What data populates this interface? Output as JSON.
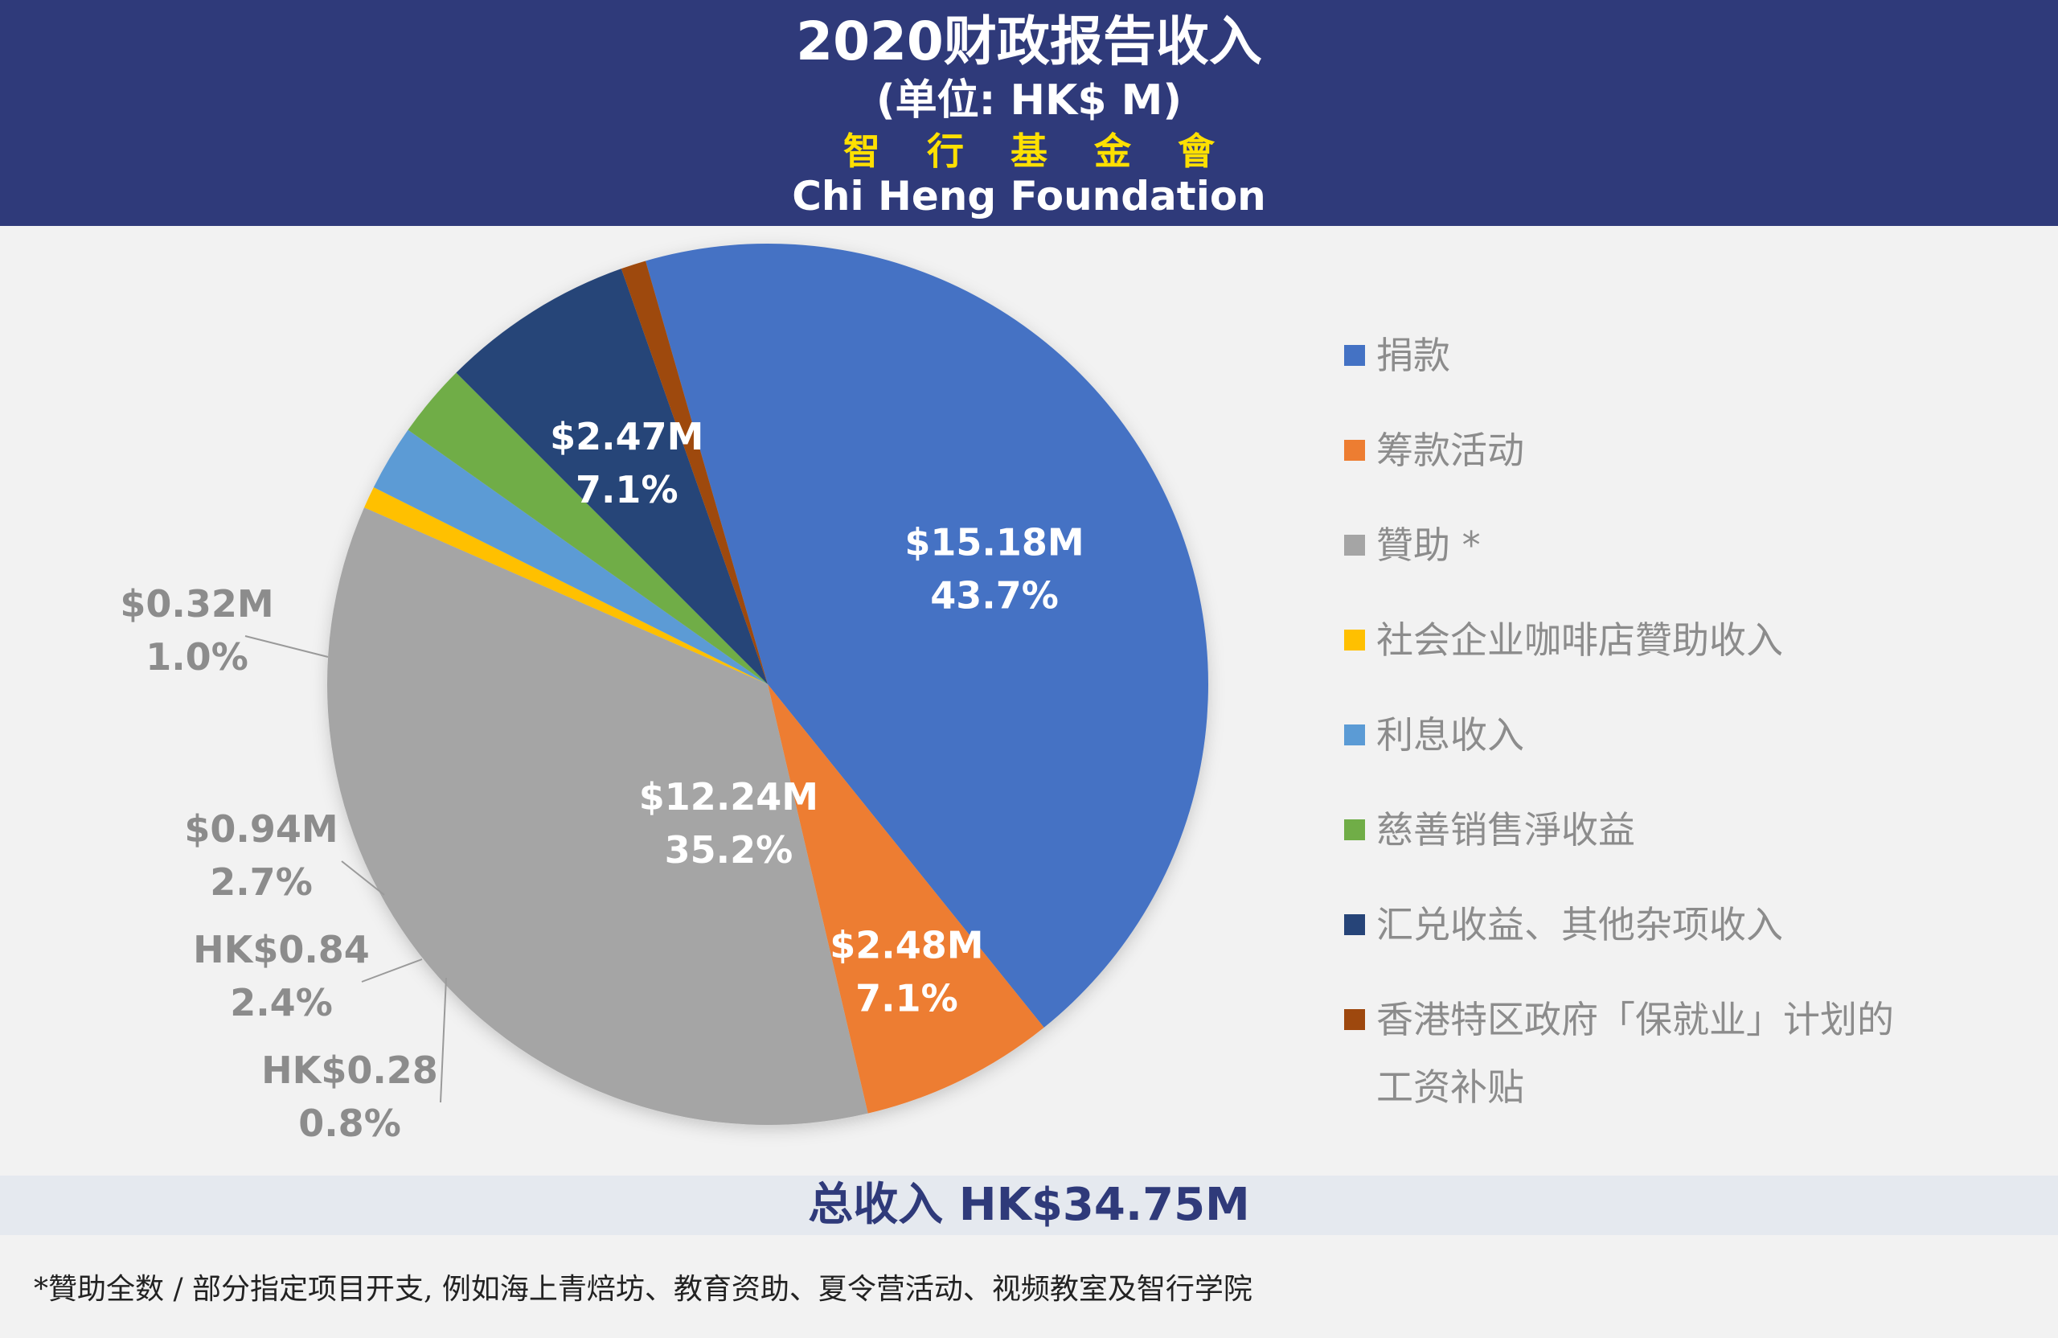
{
  "header": {
    "title": "2020财政报告收入",
    "subtitle": "(单位: HK$ M)",
    "org_cn": "智行基金會",
    "org_en": "Chi Heng Foundation"
  },
  "chart_data": {
    "type": "pie",
    "title": "2020财政报告收入",
    "subtitle": "(单位: HK$ M)",
    "legend_position": "right",
    "slices": [
      {
        "name": "捐款",
        "value": 15.18,
        "percent": 43.7,
        "value_label": "$15.18M",
        "percent_label": "43.7%",
        "color": "#4472c4"
      },
      {
        "name": "筹款活动",
        "value": 2.48,
        "percent": 7.1,
        "value_label": "$2.48M",
        "percent_label": "7.1%",
        "color": "#ed7d31"
      },
      {
        "name": "贊助 *",
        "value": 12.24,
        "percent": 35.2,
        "value_label": "$12.24M",
        "percent_label": "35.2%",
        "color": "#a5a5a5"
      },
      {
        "name": "社会企业咖啡店贊助收入",
        "value": 0.28,
        "percent": 0.8,
        "value_label": "HK$0.28",
        "percent_label": "0.8%",
        "color": "#ffc000"
      },
      {
        "name": "利息收入",
        "value": 0.84,
        "percent": 2.4,
        "value_label": "HK$0.84",
        "percent_label": "2.4%",
        "color": "#5b9bd5"
      },
      {
        "name": "慈善销售淨收益",
        "value": 0.94,
        "percent": 2.7,
        "value_label": "$0.94M",
        "percent_label": "2.7%",
        "color": "#70ad47"
      },
      {
        "name": "汇兑收益、其他杂项收入",
        "value": 2.47,
        "percent": 7.1,
        "value_label": "$2.47M",
        "percent_label": "7.1%",
        "color": "#264478"
      },
      {
        "name": "香港特区政府「保就业」计划的工资补贴",
        "value": 0.32,
        "percent": 1.0,
        "value_label": "$0.32M",
        "percent_label": "1.0%",
        "color": "#9e480e"
      }
    ]
  },
  "legend": {
    "items": [
      {
        "label": "捐款",
        "color": "#4472c4"
      },
      {
        "label": "筹款活动",
        "color": "#ed7d31"
      },
      {
        "label": "贊助 *",
        "color": "#a5a5a5"
      },
      {
        "label": "社会企业咖啡店贊助收入",
        "color": "#ffc000"
      },
      {
        "label": "利息收入",
        "color": "#5b9bd5"
      },
      {
        "label": "慈善销售淨收益",
        "color": "#70ad47"
      },
      {
        "label": "汇兑收益、其他杂项收入",
        "color": "#264478"
      },
      {
        "label": "香港特区政府「保就业」计划的",
        "label_line2": "工资补贴",
        "color": "#9e480e"
      }
    ]
  },
  "total": {
    "label": "总收入  HK$34.75M"
  },
  "footnote": "*贊助全数 / 部分指定项目开支, 例如海上青焙坊、教育资助、夏令营活动、视频教室及智行学院"
}
